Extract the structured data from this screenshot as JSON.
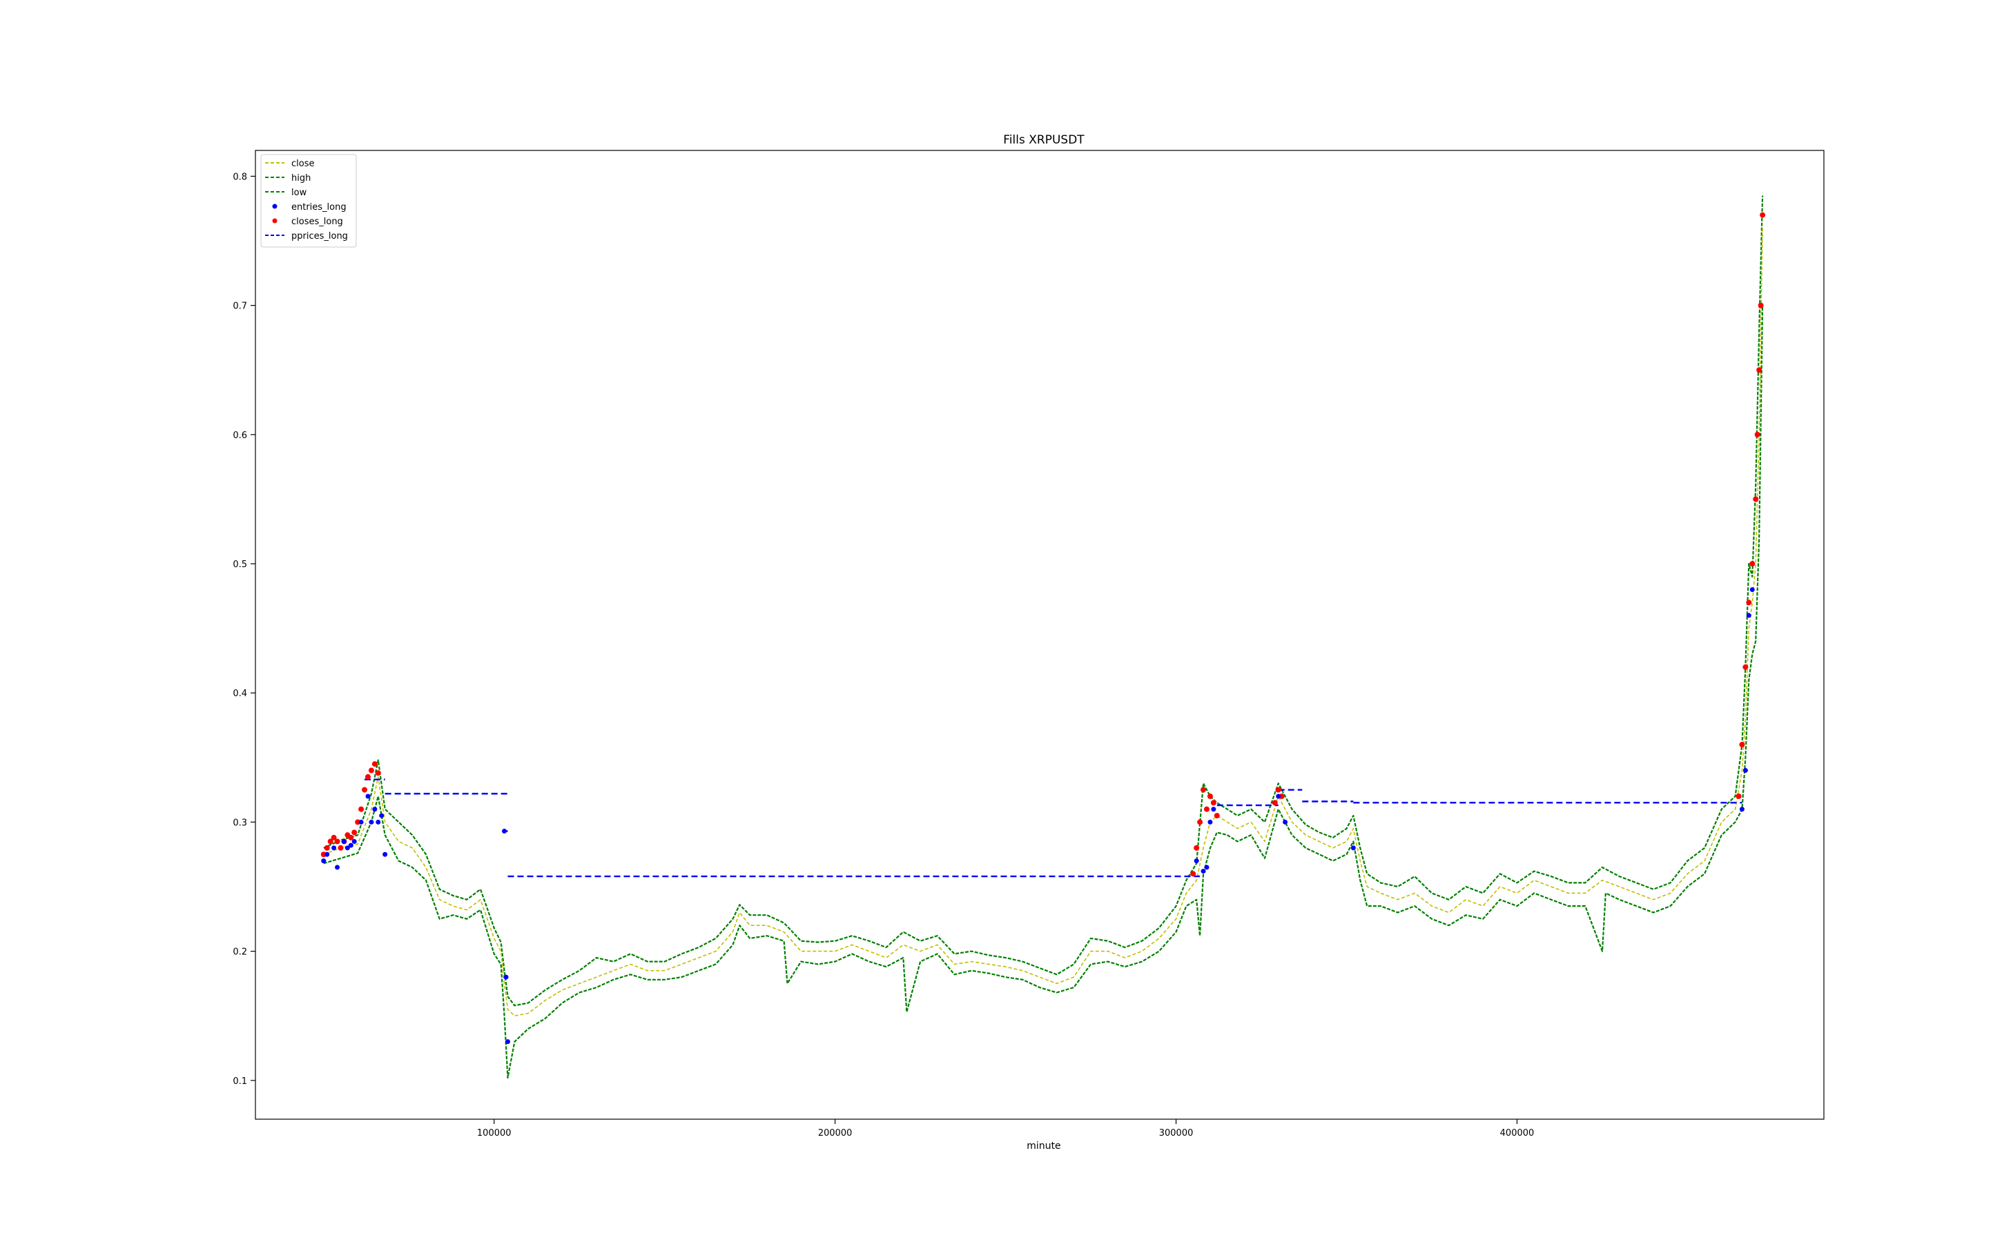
{
  "chart_data": {
    "type": "line",
    "title": "Fills XRPUSDT",
    "xlabel": "minute",
    "ylabel": "",
    "xlim": [
      30000,
      490000
    ],
    "ylim": [
      0.07,
      0.82
    ],
    "xticks": [
      100000,
      200000,
      300000,
      400000
    ],
    "yticks": [
      0.1,
      0.2,
      0.3,
      0.4,
      0.5,
      0.6,
      0.7,
      0.8
    ],
    "xtick_labels": [
      "100000",
      "200000",
      "300000",
      "400000"
    ],
    "ytick_labels": [
      "0.1",
      "0.2",
      "0.3",
      "0.4",
      "0.5",
      "0.6",
      "0.7",
      "0.8"
    ],
    "grid": false,
    "legend_position": "top-left",
    "colors": {
      "close": "#bfbf00",
      "high": "#008000",
      "low": "#008000",
      "entries_long": "#0000ff",
      "closes_long": "#ff0000",
      "pprices_long": "#0000ff"
    },
    "legend": [
      "close",
      "high",
      "low",
      "entries_long",
      "closes_long",
      "pprices_long"
    ],
    "series": [
      {
        "name": "close",
        "style": "dashed",
        "x": [
          50000,
          55000,
          60000,
          64000,
          66000,
          68000,
          72000,
          76000,
          80000,
          84000,
          88000,
          92000,
          96000,
          100000,
          102000,
          103000,
          104000,
          106000,
          110000,
          115000,
          120000,
          125000,
          130000,
          135000,
          140000,
          145000,
          150000,
          155000,
          160000,
          165000,
          170000,
          172000,
          175000,
          180000,
          185000,
          190000,
          195000,
          200000,
          205000,
          210000,
          215000,
          220000,
          225000,
          230000,
          235000,
          240000,
          245000,
          250000,
          255000,
          260000,
          265000,
          270000,
          275000,
          280000,
          285000,
          290000,
          295000,
          300000,
          303000,
          306000,
          308000,
          310000,
          312000,
          315000,
          318000,
          322000,
          326000,
          330000,
          334000,
          338000,
          342000,
          346000,
          350000,
          352000,
          354000,
          356000,
          360000,
          365000,
          370000,
          375000,
          380000,
          385000,
          390000,
          395000,
          400000,
          405000,
          410000,
          415000,
          420000,
          425000,
          430000,
          435000,
          440000,
          445000,
          450000,
          455000,
          460000,
          464000,
          466000,
          467000,
          468000,
          469000,
          470000,
          471000,
          472000
        ],
        "y": [
          0.275,
          0.28,
          0.283,
          0.31,
          0.335,
          0.3,
          0.285,
          0.28,
          0.265,
          0.24,
          0.235,
          0.232,
          0.24,
          0.21,
          0.2,
          0.175,
          0.155,
          0.15,
          0.152,
          0.162,
          0.17,
          0.175,
          0.18,
          0.185,
          0.19,
          0.185,
          0.185,
          0.19,
          0.195,
          0.2,
          0.215,
          0.23,
          0.22,
          0.22,
          0.215,
          0.2,
          0.2,
          0.2,
          0.205,
          0.2,
          0.195,
          0.205,
          0.2,
          0.205,
          0.19,
          0.192,
          0.19,
          0.188,
          0.185,
          0.18,
          0.175,
          0.18,
          0.2,
          0.2,
          0.195,
          0.2,
          0.21,
          0.225,
          0.245,
          0.255,
          0.28,
          0.3,
          0.305,
          0.3,
          0.295,
          0.3,
          0.285,
          0.32,
          0.3,
          0.29,
          0.285,
          0.28,
          0.285,
          0.295,
          0.27,
          0.25,
          0.245,
          0.24,
          0.245,
          0.235,
          0.23,
          0.24,
          0.235,
          0.25,
          0.245,
          0.255,
          0.25,
          0.245,
          0.245,
          0.255,
          0.25,
          0.245,
          0.24,
          0.245,
          0.26,
          0.27,
          0.3,
          0.31,
          0.34,
          0.38,
          0.45,
          0.47,
          0.5,
          0.6,
          0.76
        ]
      },
      {
        "name": "high",
        "style": "dashed",
        "x": [
          50000,
          55000,
          60000,
          64000,
          66000,
          68000,
          72000,
          76000,
          80000,
          84000,
          88000,
          92000,
          96000,
          100000,
          102000,
          103000,
          104000,
          106000,
          110000,
          115000,
          120000,
          125000,
          130000,
          135000,
          140000,
          145000,
          150000,
          155000,
          160000,
          165000,
          170000,
          172000,
          175000,
          180000,
          185000,
          190000,
          195000,
          200000,
          205000,
          210000,
          215000,
          220000,
          225000,
          230000,
          235000,
          240000,
          245000,
          250000,
          255000,
          260000,
          265000,
          270000,
          275000,
          280000,
          285000,
          290000,
          295000,
          300000,
          303000,
          306000,
          308000,
          310000,
          312000,
          315000,
          318000,
          322000,
          326000,
          330000,
          334000,
          338000,
          342000,
          346000,
          350000,
          352000,
          354000,
          356000,
          360000,
          365000,
          370000,
          375000,
          380000,
          385000,
          390000,
          395000,
          400000,
          405000,
          410000,
          415000,
          420000,
          425000,
          430000,
          435000,
          440000,
          445000,
          450000,
          455000,
          460000,
          464000,
          466000,
          467000,
          468000,
          469000,
          470000,
          471000,
          472000
        ],
        "y": [
          0.28,
          0.286,
          0.29,
          0.322,
          0.348,
          0.31,
          0.3,
          0.29,
          0.275,
          0.248,
          0.243,
          0.24,
          0.248,
          0.218,
          0.207,
          0.185,
          0.165,
          0.158,
          0.16,
          0.17,
          0.178,
          0.185,
          0.195,
          0.192,
          0.198,
          0.192,
          0.192,
          0.198,
          0.203,
          0.21,
          0.225,
          0.236,
          0.228,
          0.228,
          0.222,
          0.208,
          0.207,
          0.208,
          0.212,
          0.208,
          0.203,
          0.215,
          0.208,
          0.212,
          0.198,
          0.2,
          0.197,
          0.195,
          0.192,
          0.187,
          0.182,
          0.19,
          0.21,
          0.208,
          0.203,
          0.208,
          0.218,
          0.235,
          0.255,
          0.268,
          0.33,
          0.32,
          0.315,
          0.31,
          0.305,
          0.31,
          0.3,
          0.33,
          0.31,
          0.298,
          0.292,
          0.288,
          0.295,
          0.305,
          0.28,
          0.26,
          0.253,
          0.25,
          0.258,
          0.245,
          0.24,
          0.25,
          0.245,
          0.26,
          0.253,
          0.262,
          0.258,
          0.253,
          0.253,
          0.265,
          0.258,
          0.253,
          0.248,
          0.253,
          0.27,
          0.28,
          0.31,
          0.32,
          0.36,
          0.42,
          0.5,
          0.49,
          0.56,
          0.68,
          0.785
        ]
      },
      {
        "name": "low",
        "style": "dashed",
        "x": [
          50000,
          55000,
          60000,
          64000,
          66000,
          68000,
          72000,
          76000,
          80000,
          84000,
          88000,
          92000,
          96000,
          100000,
          102000,
          103000,
          104000,
          106000,
          110000,
          115000,
          120000,
          125000,
          130000,
          135000,
          140000,
          145000,
          150000,
          155000,
          160000,
          165000,
          170000,
          172000,
          175000,
          180000,
          185000,
          186000,
          190000,
          195000,
          200000,
          205000,
          210000,
          215000,
          220000,
          221000,
          225000,
          230000,
          235000,
          240000,
          245000,
          250000,
          255000,
          260000,
          265000,
          270000,
          275000,
          280000,
          285000,
          290000,
          295000,
          300000,
          303000,
          306000,
          307000,
          308000,
          310000,
          312000,
          315000,
          318000,
          322000,
          326000,
          330000,
          334000,
          338000,
          342000,
          346000,
          350000,
          352000,
          354000,
          356000,
          360000,
          365000,
          370000,
          375000,
          380000,
          385000,
          390000,
          395000,
          400000,
          405000,
          410000,
          415000,
          420000,
          425000,
          426000,
          430000,
          435000,
          440000,
          445000,
          450000,
          455000,
          460000,
          464000,
          466000,
          467000,
          468000,
          469000,
          470000,
          471000,
          472000
        ],
        "y": [
          0.268,
          0.272,
          0.276,
          0.3,
          0.32,
          0.29,
          0.27,
          0.265,
          0.255,
          0.225,
          0.228,
          0.225,
          0.232,
          0.198,
          0.19,
          0.15,
          0.102,
          0.13,
          0.14,
          0.148,
          0.16,
          0.168,
          0.172,
          0.178,
          0.182,
          0.178,
          0.178,
          0.18,
          0.185,
          0.19,
          0.205,
          0.22,
          0.21,
          0.212,
          0.208,
          0.175,
          0.192,
          0.19,
          0.192,
          0.198,
          0.192,
          0.188,
          0.195,
          0.153,
          0.192,
          0.198,
          0.182,
          0.185,
          0.183,
          0.18,
          0.178,
          0.172,
          0.168,
          0.172,
          0.19,
          0.192,
          0.188,
          0.192,
          0.2,
          0.215,
          0.235,
          0.24,
          0.212,
          0.26,
          0.28,
          0.292,
          0.29,
          0.285,
          0.29,
          0.272,
          0.31,
          0.29,
          0.28,
          0.275,
          0.27,
          0.275,
          0.285,
          0.255,
          0.235,
          0.235,
          0.23,
          0.235,
          0.225,
          0.22,
          0.228,
          0.225,
          0.24,
          0.235,
          0.245,
          0.24,
          0.235,
          0.235,
          0.2,
          0.245,
          0.24,
          0.235,
          0.23,
          0.235,
          0.25,
          0.26,
          0.29,
          0.3,
          0.31,
          0.35,
          0.41,
          0.43,
          0.44,
          0.52,
          0.7
        ]
      },
      {
        "name": "entries_long",
        "style": "markers",
        "x": [
          50000,
          51000,
          53000,
          54000,
          56000,
          57000,
          58000,
          59000,
          61000,
          63000,
          64000,
          65000,
          66000,
          67000,
          68000,
          103000,
          103500,
          104000,
          306000,
          308000,
          309000,
          310000,
          311000,
          330000,
          332000,
          352000,
          466000,
          467000,
          468000,
          469000
        ],
        "y": [
          0.27,
          0.275,
          0.28,
          0.265,
          0.285,
          0.28,
          0.282,
          0.285,
          0.3,
          0.32,
          0.3,
          0.31,
          0.3,
          0.305,
          0.275,
          0.293,
          0.18,
          0.13,
          0.27,
          0.262,
          0.265,
          0.3,
          0.31,
          0.32,
          0.3,
          0.28,
          0.31,
          0.34,
          0.46,
          0.48
        ]
      },
      {
        "name": "closes_long",
        "style": "markers",
        "x": [
          50000,
          51000,
          52000,
          53000,
          54000,
          55000,
          56000,
          57000,
          58000,
          59000,
          60000,
          61000,
          62000,
          63000,
          64000,
          65000,
          66000,
          305000,
          306000,
          307000,
          308000,
          309000,
          310000,
          311000,
          312000,
          329000,
          330000,
          331000,
          465000,
          466000,
          467000,
          468000,
          469000,
          470000,
          470500,
          471000,
          471500,
          472000
        ],
        "y": [
          0.275,
          0.28,
          0.285,
          0.288,
          0.285,
          0.28,
          0.285,
          0.29,
          0.288,
          0.292,
          0.3,
          0.31,
          0.325,
          0.335,
          0.34,
          0.345,
          0.338,
          0.26,
          0.28,
          0.3,
          0.325,
          0.31,
          0.32,
          0.315,
          0.305,
          0.315,
          0.325,
          0.32,
          0.32,
          0.36,
          0.42,
          0.47,
          0.5,
          0.55,
          0.6,
          0.65,
          0.7,
          0.77
        ]
      },
      {
        "name": "pprices_long",
        "style": "dashed",
        "segments": [
          {
            "x": [
              62000,
              68000
            ],
            "y": [
              0.333,
              0.333
            ]
          },
          {
            "x": [
              68000,
              104000
            ],
            "y": [
              0.322,
              0.322
            ]
          },
          {
            "x": [
              103000,
              104000
            ],
            "y": [
              0.293,
              0.293
            ]
          },
          {
            "x": [
              104000,
              307000
            ],
            "y": [
              0.258,
              0.258
            ]
          },
          {
            "x": [
              312000,
              330000
            ],
            "y": [
              0.313,
              0.313
            ]
          },
          {
            "x": [
              330000,
              337000
            ],
            "y": [
              0.325,
              0.325
            ]
          },
          {
            "x": [
              337000,
              352000
            ],
            "y": [
              0.316,
              0.316
            ]
          },
          {
            "x": [
              352000,
              466000
            ],
            "y": [
              0.315,
              0.315
            ]
          }
        ]
      }
    ]
  }
}
